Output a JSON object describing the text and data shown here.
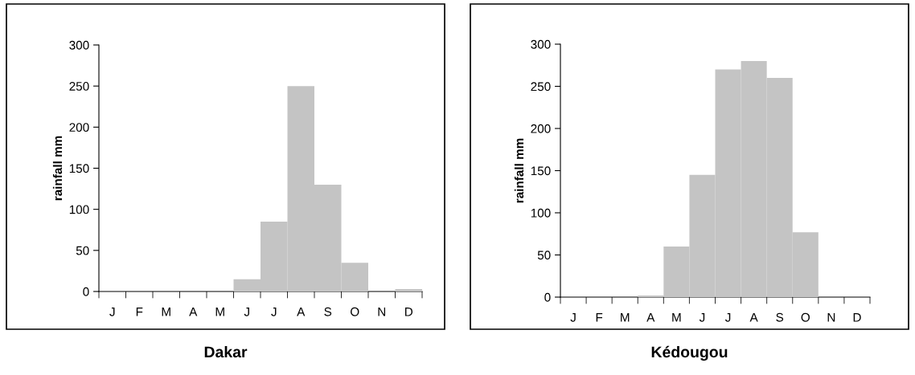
{
  "chart_data": [
    {
      "type": "bar",
      "title": "Dakar",
      "ylabel": "rainfall mm",
      "categories": [
        "J",
        "F",
        "M",
        "A",
        "M",
        "J",
        "J",
        "A",
        "S",
        "O",
        "N",
        "D"
      ],
      "series": [
        {
          "color": "#c4c4c4",
          "values": [
            0,
            0,
            0,
            0,
            0,
            15,
            85,
            250,
            130,
            35,
            0,
            3
          ]
        }
      ],
      "ylim": [
        0,
        300
      ],
      "yticks": [
        0,
        50,
        100,
        150,
        200,
        250,
        300
      ],
      "grid": false,
      "legend": false
    },
    {
      "type": "bar",
      "title": "Kédougou",
      "ylabel": "rainfall mm",
      "categories": [
        "J",
        "F",
        "M",
        "A",
        "M",
        "J",
        "J",
        "A",
        "S",
        "O",
        "N",
        "D"
      ],
      "series": [
        {
          "color": "#c4c4c4",
          "values": [
            0,
            0,
            0,
            2,
            60,
            145,
            270,
            280,
            260,
            77,
            0,
            0
          ]
        }
      ],
      "ylim": [
        0,
        300
      ],
      "yticks": [
        0,
        50,
        100,
        150,
        200,
        250,
        300
      ],
      "grid": false,
      "legend": false
    }
  ]
}
